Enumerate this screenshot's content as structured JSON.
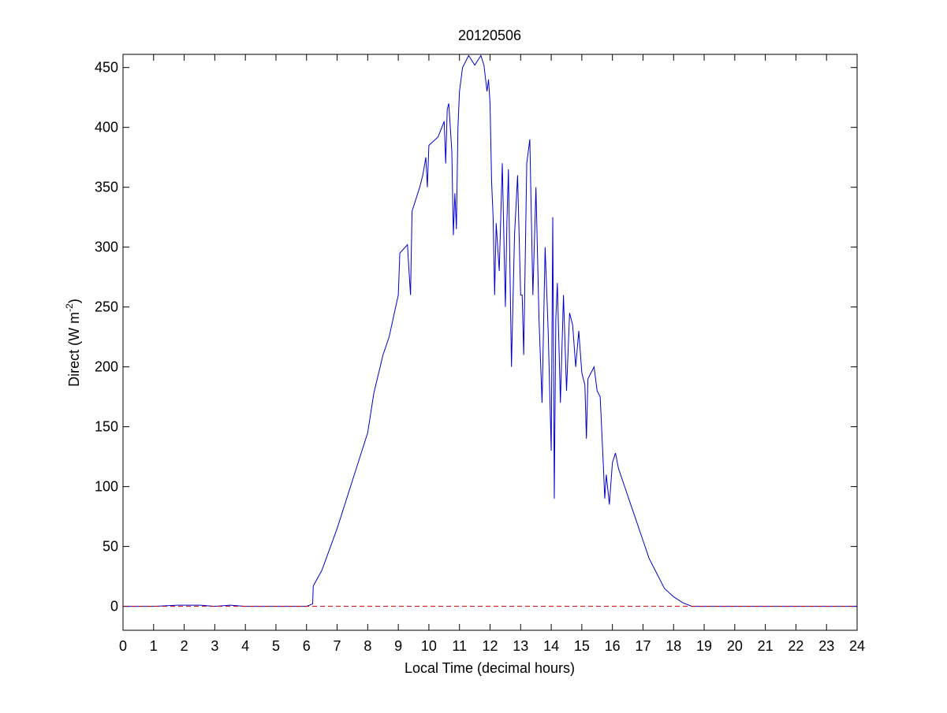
{
  "chart_data": {
    "type": "line",
    "title": "20120506",
    "xlabel": "Local Time (decimal hours)",
    "ylabel_parts": [
      "Direct (W m",
      "-2",
      ")"
    ],
    "xlim": [
      0,
      24
    ],
    "ylim": [
      -20,
      461
    ],
    "xticks": [
      0,
      1,
      2,
      3,
      4,
      5,
      6,
      7,
      8,
      9,
      10,
      11,
      12,
      13,
      14,
      15,
      16,
      17,
      18,
      19,
      20,
      21,
      22,
      23,
      24
    ],
    "yticks": [
      0,
      50,
      100,
      150,
      200,
      250,
      300,
      350,
      400,
      450
    ],
    "reference_line": {
      "value": 0,
      "color": "#cc0000",
      "dashed": true
    },
    "series": [
      {
        "name": "Direct",
        "color": "#0000cc",
        "x": [
          0,
          1,
          1.8,
          2.5,
          3,
          3.5,
          4,
          5,
          6,
          6.1,
          6.2,
          6.22,
          6.5,
          7,
          7.5,
          8,
          8.2,
          8.5,
          8.7,
          9,
          9.05,
          9.3,
          9.35,
          9.4,
          9.45,
          9.7,
          9.8,
          9.9,
          9.95,
          10,
          10.3,
          10.5,
          10.55,
          10.6,
          10.65,
          10.7,
          10.75,
          10.8,
          10.85,
          10.9,
          10.95,
          11,
          11.1,
          11.3,
          11.5,
          11.7,
          11.8,
          11.9,
          11.95,
          12,
          12.05,
          12.1,
          12.15,
          12.2,
          12.3,
          12.4,
          12.5,
          12.55,
          12.6,
          12.7,
          12.8,
          12.9,
          13,
          13.05,
          13.1,
          13.2,
          13.3,
          13.4,
          13.5,
          13.6,
          13.7,
          13.8,
          13.9,
          14,
          14.05,
          14.1,
          14.15,
          14.2,
          14.3,
          14.4,
          14.5,
          14.6,
          14.7,
          14.8,
          14.9,
          15,
          15.1,
          15.15,
          15.2,
          15.3,
          15.4,
          15.5,
          15.6,
          15.7,
          15.75,
          15.8,
          15.9,
          16,
          16.1,
          16.2,
          16.4,
          16.6,
          16.8,
          17,
          17.2,
          17.4,
          17.6,
          17.7,
          18,
          18.3,
          18.6,
          19,
          20,
          21,
          22,
          23,
          24
        ],
        "values": [
          0,
          0,
          1,
          1,
          0,
          1,
          0,
          0,
          0,
          1,
          2,
          17,
          30,
          65,
          105,
          145,
          178,
          210,
          225,
          260,
          295,
          302,
          280,
          260,
          330,
          350,
          360,
          375,
          350,
          385,
          392,
          405,
          370,
          415,
          420,
          400,
          380,
          310,
          345,
          315,
          400,
          430,
          450,
          460,
          452,
          460,
          452,
          430,
          440,
          420,
          355,
          325,
          260,
          320,
          280,
          370,
          250,
          320,
          365,
          200,
          310,
          360,
          260,
          260,
          210,
          370,
          390,
          260,
          350,
          240,
          170,
          300,
          230,
          130,
          325,
          90,
          240,
          270,
          170,
          260,
          180,
          245,
          235,
          200,
          230,
          195,
          185,
          140,
          190,
          195,
          200,
          180,
          175,
          120,
          90,
          110,
          85,
          120,
          128,
          115,
          100,
          85,
          70,
          55,
          40,
          30,
          20,
          15,
          8,
          3,
          0,
          0,
          0,
          0,
          0,
          0,
          0
        ]
      }
    ]
  }
}
